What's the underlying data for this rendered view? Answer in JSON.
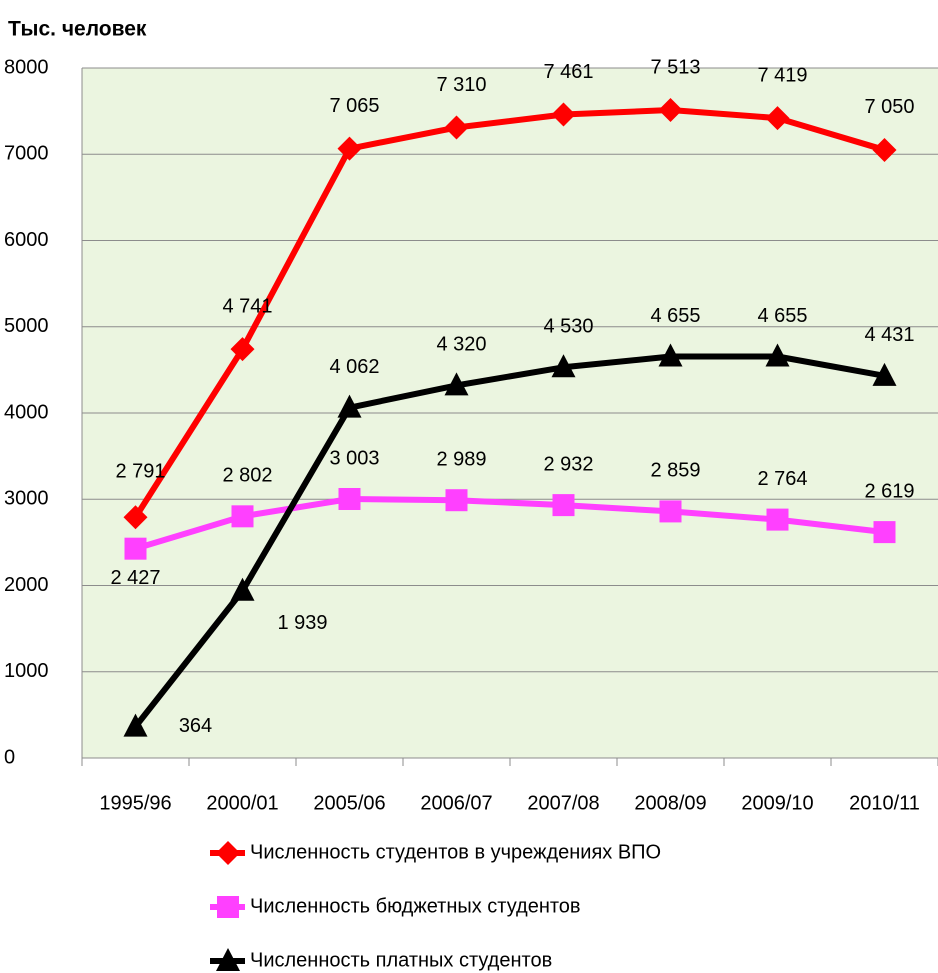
{
  "chart_data": {
    "type": "line",
    "y_label": "Тыс. человек",
    "categories": [
      "1995/96",
      "2000/01",
      "2005/06",
      "2006/07",
      "2007/08",
      "2008/09",
      "2009/10",
      "2010/11"
    ],
    "series": [
      {
        "name": "Численность студентов в  учреждениях ВПО",
        "color": "#ff0000",
        "marker": "diamond",
        "values": [
          2791,
          4741,
          7065,
          7310,
          7461,
          7513,
          7419,
          7050
        ],
        "value_labels": [
          "2 791",
          "4 741",
          "7 065",
          "7 310",
          "7 461",
          "7 513",
          "7 419",
          "7 050"
        ]
      },
      {
        "name": "Численность бюджетных студентов",
        "color": "#ff40ff",
        "marker": "square",
        "values": [
          2427,
          2802,
          3003,
          2989,
          2932,
          2859,
          2764,
          2619
        ],
        "value_labels": [
          "2 427",
          "2 802",
          "3 003",
          "2 989",
          "2 932",
          "2 859",
          "2 764",
          "2 619"
        ]
      },
      {
        "name": "Численность платных студентов",
        "color": "#000000",
        "marker": "triangle",
        "values": [
          364,
          1939,
          4062,
          4320,
          4530,
          4655,
          4655,
          4431
        ],
        "value_labels": [
          "364",
          "1 939",
          "4 062",
          "4 320",
          "4 530",
          "4 655",
          "4 655",
          "4 431"
        ]
      }
    ],
    "ylim": [
      0,
      8000
    ],
    "yticks": [
      0,
      1000,
      2000,
      3000,
      4000,
      5000,
      6000,
      7000,
      8000
    ],
    "grid": true,
    "legend": "bottom"
  }
}
